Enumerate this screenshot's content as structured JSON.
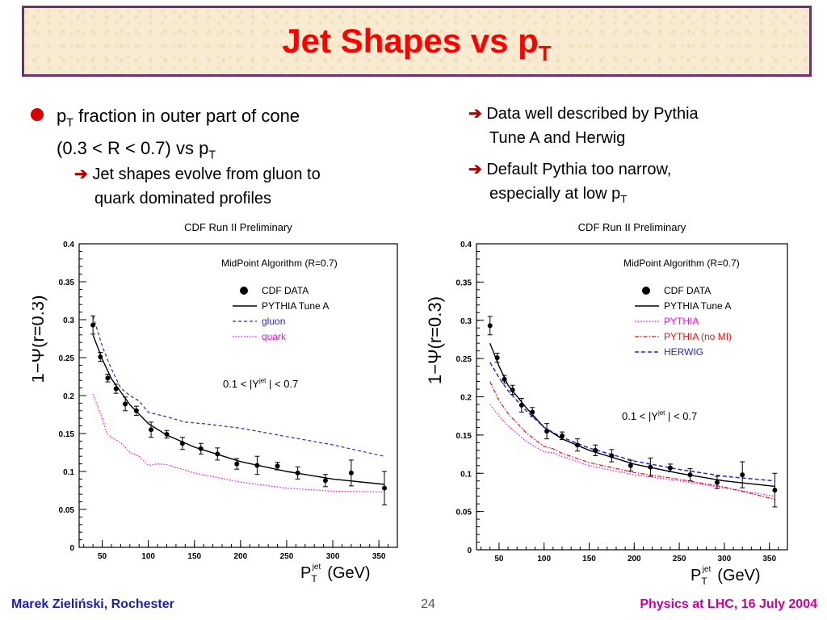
{
  "title": {
    "main": "Jet Shapes vs p",
    "sub": "T"
  },
  "left_text": {
    "bullet_line1_a": "p",
    "bullet_line1_sub": "T",
    "bullet_line1_b": " fraction in outer part of cone",
    "bullet_line2_a": "(0.3 < R < 0.7)  vs p",
    "bullet_line2_sub": "T",
    "sub_line1": "Jet shapes evolve from gluon to",
    "sub_line2": "quark dominated profiles"
  },
  "right_text": {
    "item1_line1": "Data well described by Pythia",
    "item1_line2": "Tune A and Herwig",
    "item2_line1": "Default Pythia too narrow,",
    "item2_line2_a": "especially at low p",
    "item2_line2_sub": "T"
  },
  "footer": {
    "author": "Marek Zieliński, Rochester",
    "page": "24",
    "event": "Physics at LHC,  16 July 2004"
  },
  "colors": {
    "title": "#ff0000",
    "title_border": "#6b2f74",
    "footer_author": "#1d1db0",
    "footer_event": "#cc0099",
    "pythia_tuneA": "#000000",
    "gluon": "#2828d0",
    "quark": "#ff00ff",
    "pythia": "#ff00ff",
    "pythia_noMI": "#ee1111",
    "herwig": "#2828d0"
  },
  "chart_data": [
    {
      "type": "scatter",
      "title": "CDF Run II Preliminary",
      "algorithm": "MidPoint Algorithm (R=0.7)",
      "rapidity_cut": "0.1 < |Y",
      "rapidity_sup": "jet",
      "rapidity_tail": "| < 0.7",
      "ylabel": "1−Ψ(r=0.3)",
      "xlabel": "P",
      "xlabel_sub": "T",
      "xlabel_sup": "jet",
      "xlabel_unit": "(GeV)",
      "xlim": [
        25,
        370
      ],
      "ylim": [
        0,
        0.4
      ],
      "xticks": [
        50,
        100,
        150,
        200,
        250,
        300,
        350
      ],
      "yticks": [
        0,
        0.05,
        0.1,
        0.15,
        0.2,
        0.25,
        0.3,
        0.35,
        0.4
      ],
      "legend": [
        "CDF DATA",
        "PYTHIA Tune A",
        "gluon",
        "quark"
      ],
      "data": {
        "x": [
          40,
          48,
          56,
          65,
          75,
          87,
          103,
          120,
          137,
          157,
          175,
          196,
          218,
          240,
          262,
          292,
          320,
          356
        ],
        "y": [
          0.293,
          0.251,
          0.223,
          0.209,
          0.189,
          0.18,
          0.155,
          0.149,
          0.137,
          0.13,
          0.123,
          0.11,
          0.108,
          0.107,
          0.098,
          0.088,
          0.098,
          0.078
        ],
        "err": [
          0.012,
          0.006,
          0.005,
          0.006,
          0.009,
          0.006,
          0.01,
          0.005,
          0.008,
          0.007,
          0.008,
          0.007,
          0.012,
          0.005,
          0.008,
          0.008,
          0.017,
          0.022
        ]
      },
      "series": [
        {
          "name": "PYTHIA Tune A",
          "x": [
            40,
            50,
            60,
            80,
            100,
            120,
            150,
            200,
            250,
            300,
            356
          ],
          "y": [
            0.28,
            0.248,
            0.222,
            0.188,
            0.163,
            0.148,
            0.132,
            0.113,
            0.1,
            0.09,
            0.083
          ]
        },
        {
          "name": "gluon",
          "x": [
            40,
            50,
            60,
            70,
            80,
            90,
            100,
            120,
            140,
            160,
            200,
            250,
            300,
            356
          ],
          "y": [
            0.305,
            0.265,
            0.235,
            0.21,
            0.2,
            0.193,
            0.178,
            0.172,
            0.165,
            0.163,
            0.157,
            0.146,
            0.135,
            0.12
          ]
        },
        {
          "name": "quark",
          "x": [
            40,
            50,
            55,
            60,
            70,
            80,
            90,
            100,
            110,
            120,
            150,
            200,
            250,
            300,
            356
          ],
          "y": [
            0.202,
            0.17,
            0.15,
            0.145,
            0.138,
            0.125,
            0.12,
            0.108,
            0.11,
            0.109,
            0.098,
            0.086,
            0.078,
            0.074,
            0.073
          ]
        }
      ]
    },
    {
      "type": "scatter",
      "title": "CDF Run II Preliminary",
      "algorithm": "MidPoint Algorithm (R=0.7)",
      "rapidity_cut": "0.1 < |Y",
      "rapidity_sup": "jet",
      "rapidity_tail": "| < 0.7",
      "ylabel": "1−Ψ(r=0.3)",
      "xlabel": "P",
      "xlabel_sub": "T",
      "xlabel_sup": "jet",
      "xlabel_unit": "(GeV)",
      "xlim": [
        25,
        370
      ],
      "ylim": [
        0,
        0.4
      ],
      "xticks": [
        50,
        100,
        150,
        200,
        250,
        300,
        350
      ],
      "yticks": [
        0,
        0.05,
        0.1,
        0.15,
        0.2,
        0.25,
        0.3,
        0.35,
        0.4
      ],
      "legend": [
        "CDF DATA",
        "PYTHIA Tune A",
        "PYTHIA",
        "PYTHIA (no MI)",
        "HERWIG"
      ],
      "data": {
        "x": [
          40,
          48,
          56,
          65,
          75,
          87,
          103,
          120,
          137,
          157,
          175,
          196,
          218,
          240,
          262,
          292,
          320,
          356
        ],
        "y": [
          0.293,
          0.251,
          0.223,
          0.209,
          0.189,
          0.18,
          0.155,
          0.149,
          0.137,
          0.13,
          0.123,
          0.11,
          0.108,
          0.107,
          0.098,
          0.088,
          0.098,
          0.078
        ],
        "err": [
          0.012,
          0.006,
          0.005,
          0.006,
          0.009,
          0.006,
          0.01,
          0.005,
          0.008,
          0.007,
          0.008,
          0.007,
          0.012,
          0.005,
          0.008,
          0.008,
          0.017,
          0.022
        ]
      },
      "series": [
        {
          "name": "PYTHIA Tune A",
          "x": [
            40,
            50,
            60,
            80,
            100,
            120,
            150,
            200,
            250,
            300,
            356
          ],
          "y": [
            0.27,
            0.24,
            0.215,
            0.186,
            0.16,
            0.145,
            0.13,
            0.112,
            0.1,
            0.09,
            0.083
          ]
        },
        {
          "name": "PYTHIA",
          "x": [
            40,
            50,
            60,
            80,
            100,
            110,
            120,
            150,
            200,
            250,
            300,
            356
          ],
          "y": [
            0.19,
            0.175,
            0.162,
            0.142,
            0.128,
            0.127,
            0.122,
            0.11,
            0.098,
            0.09,
            0.081,
            0.07
          ]
        },
        {
          "name": "PYTHIA (no MI)",
          "x": [
            40,
            50,
            60,
            80,
            100,
            110,
            120,
            150,
            200,
            250,
            300,
            356
          ],
          "y": [
            0.22,
            0.195,
            0.178,
            0.153,
            0.135,
            0.132,
            0.126,
            0.114,
            0.101,
            0.092,
            0.082,
            0.066
          ]
        },
        {
          "name": "HERWIG",
          "x": [
            40,
            50,
            60,
            80,
            100,
            120,
            150,
            200,
            250,
            300,
            356
          ],
          "y": [
            0.245,
            0.225,
            0.208,
            0.182,
            0.16,
            0.147,
            0.133,
            0.116,
            0.105,
            0.096,
            0.09
          ]
        }
      ]
    }
  ]
}
